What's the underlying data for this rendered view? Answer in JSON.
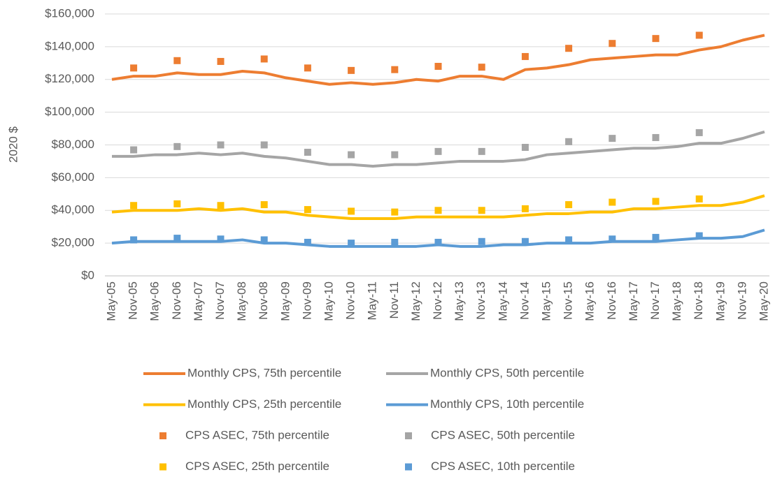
{
  "chart_data": {
    "type": "line",
    "y_label": "2020 $",
    "categories": [
      "May-05",
      "Nov-05",
      "May-06",
      "Nov-06",
      "May-07",
      "Nov-07",
      "May-08",
      "Nov-08",
      "May-09",
      "Nov-09",
      "May-10",
      "Nov-10",
      "May-11",
      "Nov-11",
      "May-12",
      "Nov-12",
      "May-13",
      "Nov-13",
      "May-14",
      "Nov-14",
      "May-15",
      "Nov-15",
      "May-16",
      "Nov-16",
      "May-17",
      "Nov-17",
      "May-18",
      "Nov-18",
      "May-19",
      "Nov-19",
      "May-20"
    ],
    "ylim": [
      0,
      160000
    ],
    "yticks": [
      {
        "value": 0,
        "label": "$0"
      },
      {
        "value": 20000,
        "label": "$20,000"
      },
      {
        "value": 40000,
        "label": "$40,000"
      },
      {
        "value": 60000,
        "label": "$60,000"
      },
      {
        "value": 80000,
        "label": "$80,000"
      },
      {
        "value": 100000,
        "label": "$100,000"
      },
      {
        "value": 120000,
        "label": "$120,000"
      },
      {
        "value": 140000,
        "label": "$140,000"
      },
      {
        "value": 160000,
        "label": "$160,000"
      }
    ],
    "grid": true,
    "series": [
      {
        "name": "Monthly CPS, 75th percentile",
        "color": "#ED7D31",
        "style": "line",
        "values": [
          120000,
          122000,
          122000,
          124000,
          123000,
          123000,
          125000,
          124000,
          121000,
          119000,
          117000,
          118000,
          117000,
          118000,
          120000,
          119000,
          122000,
          122000,
          120000,
          126000,
          127000,
          129000,
          132000,
          133000,
          134000,
          135000,
          135000,
          138000,
          140000,
          144000,
          147000
        ]
      },
      {
        "name": "Monthly CPS, 50th percentile",
        "color": "#A5A5A5",
        "style": "line",
        "values": [
          73000,
          73000,
          74000,
          74000,
          75000,
          74000,
          75000,
          73000,
          72000,
          70000,
          68000,
          68000,
          67000,
          68000,
          68000,
          69000,
          70000,
          70000,
          70000,
          71000,
          74000,
          75000,
          76000,
          77000,
          78000,
          78000,
          79000,
          81000,
          81000,
          84000,
          88000
        ]
      },
      {
        "name": "Monthly CPS, 25th percentile",
        "color": "#FFC000",
        "style": "line",
        "values": [
          39000,
          40000,
          40000,
          40000,
          41000,
          40000,
          41000,
          39000,
          39000,
          37000,
          36000,
          35000,
          35000,
          35000,
          36000,
          36000,
          36000,
          36000,
          36000,
          37000,
          38000,
          38000,
          39000,
          39000,
          41000,
          41000,
          42000,
          43000,
          43000,
          45000,
          49000
        ]
      },
      {
        "name": "Monthly CPS, 10th percentile",
        "color": "#5B9BD5",
        "style": "line",
        "values": [
          20000,
          21000,
          21000,
          21000,
          21000,
          21000,
          22000,
          20000,
          20000,
          19000,
          18000,
          18000,
          18000,
          18000,
          18000,
          19000,
          18000,
          18000,
          19000,
          19000,
          20000,
          20000,
          20000,
          21000,
          21000,
          21000,
          22000,
          23000,
          23000,
          24000,
          28000
        ]
      },
      {
        "name": "CPS ASEC, 75th percentile",
        "color": "#ED7D31",
        "style": "marker",
        "values": [
          null,
          127000,
          null,
          131500,
          null,
          131000,
          null,
          132500,
          null,
          127000,
          null,
          125500,
          null,
          126000,
          null,
          128000,
          null,
          127500,
          null,
          134000,
          null,
          139000,
          null,
          142000,
          null,
          145000,
          null,
          147000,
          null,
          null,
          null
        ]
      },
      {
        "name": "CPS ASEC, 50th percentile",
        "color": "#A5A5A5",
        "style": "marker",
        "values": [
          null,
          77000,
          null,
          79000,
          null,
          80000,
          null,
          80000,
          null,
          75500,
          null,
          74000,
          null,
          74000,
          null,
          76000,
          null,
          76000,
          null,
          78500,
          null,
          82000,
          null,
          84000,
          null,
          84500,
          null,
          87500,
          null,
          null,
          null
        ]
      },
      {
        "name": "CPS ASEC, 25th percentile",
        "color": "#FFC000",
        "style": "marker",
        "values": [
          null,
          43000,
          null,
          44000,
          null,
          43000,
          null,
          43500,
          null,
          40500,
          null,
          39500,
          null,
          39000,
          null,
          40000,
          null,
          40000,
          null,
          41000,
          null,
          43500,
          null,
          45000,
          null,
          45500,
          null,
          47000,
          null,
          null,
          null
        ]
      },
      {
        "name": "CPS ASEC, 10th percentile",
        "color": "#5B9BD5",
        "style": "marker",
        "values": [
          null,
          22000,
          null,
          23000,
          null,
          22500,
          null,
          22000,
          null,
          20500,
          null,
          20000,
          null,
          20500,
          null,
          20500,
          null,
          21000,
          null,
          21000,
          null,
          22000,
          null,
          22500,
          null,
          23500,
          null,
          24500,
          null,
          null,
          null
        ]
      }
    ]
  }
}
